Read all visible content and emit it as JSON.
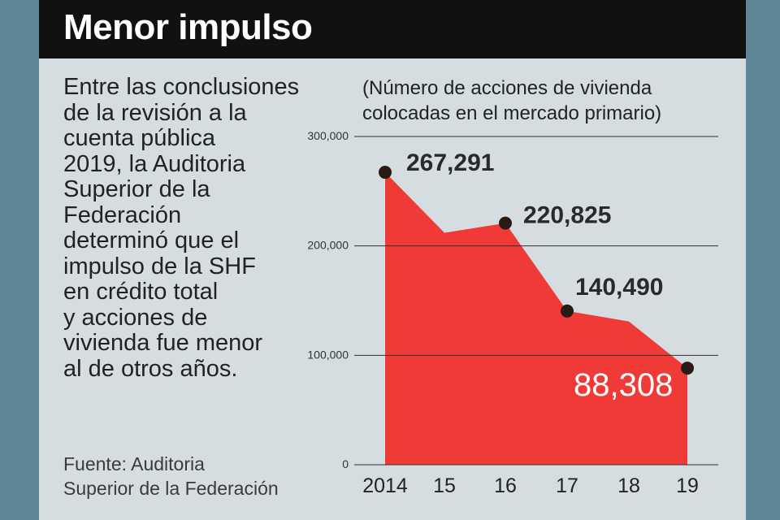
{
  "title": "Menor impulso",
  "body_lines": [
    "Entre las conclusiones",
    "de la revisión a la",
    "cuenta pública",
    "2019, la Auditoria",
    "Superior de la",
    "Federación",
    "determinó que el",
    "impulso de la SHF",
    "en crédito total",
    "y acciones de",
    "vivienda fue menor",
    "al de otros años."
  ],
  "source_lines": [
    "Fuente: Auditoria",
    "Superior de la Federación"
  ],
  "colors": {
    "area": "#f03a37",
    "marker": "#2a1a14",
    "highlight_label": "#ffffff",
    "grid": "#333333"
  },
  "chart_data": {
    "type": "area",
    "subtitle_lines": [
      "(Número de acciones de vivienda",
      "colocadas en el mercado primario)"
    ],
    "categories": [
      "2014",
      "15",
      "16",
      "17",
      "18",
      "19"
    ],
    "values": [
      267291,
      212000,
      220825,
      140490,
      131000,
      88308
    ],
    "labeled_points": [
      {
        "index": 0,
        "label": "267,291"
      },
      {
        "index": 2,
        "label": "220,825"
      },
      {
        "index": 3,
        "label": "140,490"
      },
      {
        "index": 5,
        "label": "88,308"
      }
    ],
    "y_ticks": [
      0,
      100000,
      200000,
      300000
    ],
    "y_tick_labels": [
      "0",
      "100,000",
      "200,000",
      "300,000"
    ],
    "ylim": [
      0,
      300000
    ],
    "grid": true
  }
}
